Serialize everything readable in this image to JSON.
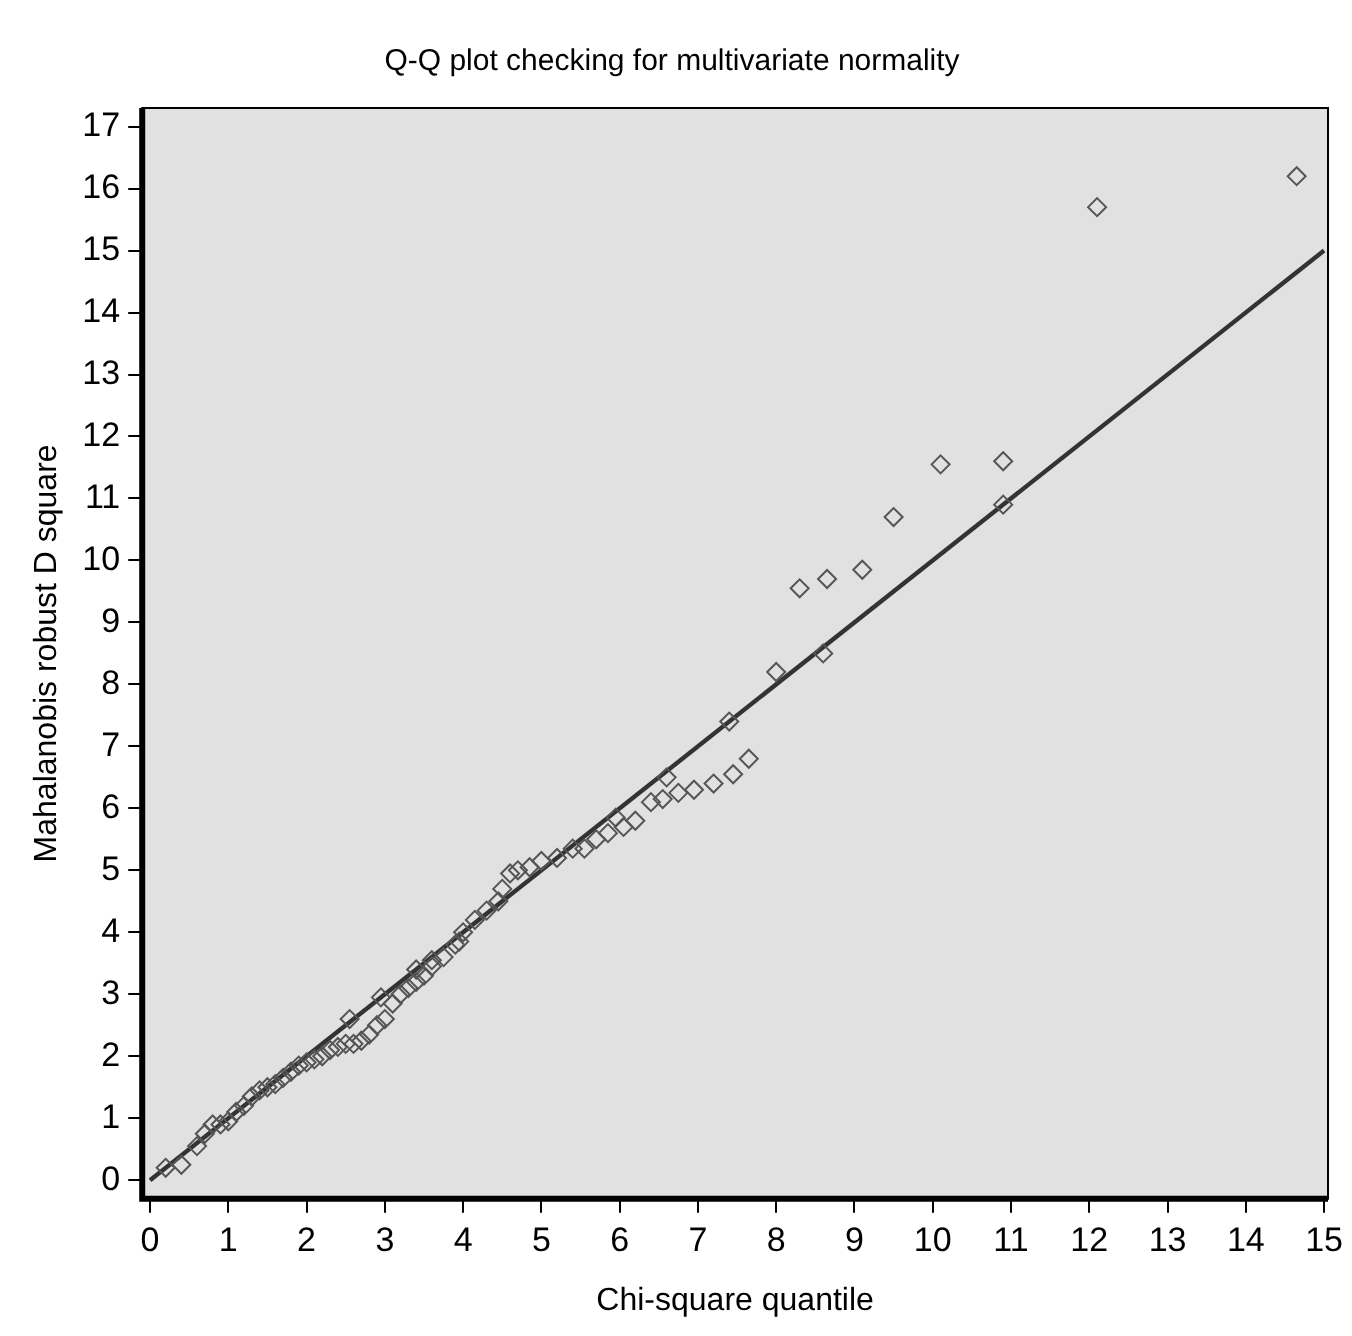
{
  "chart_data": {
    "type": "scatter",
    "title": "Q-Q plot checking for multivariate normality",
    "xlabel": "Chi-square quantile",
    "ylabel": "Mahalanobis robust D square",
    "xlim": [
      -0.1,
      15.05
    ],
    "ylim": [
      -0.3,
      17.3
    ],
    "xticks": [
      0,
      1,
      2,
      3,
      4,
      5,
      6,
      7,
      8,
      9,
      10,
      11,
      12,
      13,
      14,
      15
    ],
    "yticks": [
      0,
      1,
      2,
      3,
      4,
      5,
      6,
      7,
      8,
      9,
      10,
      11,
      12,
      13,
      14,
      15,
      16,
      17
    ],
    "grid": false,
    "legend": false,
    "series": [
      {
        "color": "#555555",
        "marker": "diamond",
        "x": [
          0.2,
          0.4,
          0.6,
          0.7,
          0.8,
          0.9,
          1.0,
          1.1,
          1.2,
          1.3,
          1.4,
          1.5,
          1.6,
          1.7,
          1.8,
          1.9,
          2.0,
          2.1,
          2.2,
          2.3,
          2.4,
          2.5,
          2.55,
          2.6,
          2.7,
          2.8,
          2.9,
          2.95,
          3.0,
          3.1,
          3.2,
          3.3,
          3.4,
          3.4,
          3.5,
          3.6,
          3.6,
          3.75,
          3.9,
          3.95,
          4.0,
          4.15,
          4.3,
          4.45,
          4.5,
          4.6,
          4.7,
          4.85,
          5.0,
          5.2,
          5.4,
          5.55,
          5.7,
          5.85,
          5.95,
          6.05,
          6.2,
          6.4,
          6.55,
          6.6,
          6.75,
          6.95,
          7.2,
          7.4,
          7.45,
          7.65,
          8.0,
          8.3,
          8.6,
          8.65,
          9.1,
          9.5,
          10.1,
          10.9,
          10.9,
          12.1,
          14.65
        ],
        "values": [
          0.2,
          0.25,
          0.55,
          0.75,
          0.9,
          0.9,
          0.95,
          1.1,
          1.2,
          1.35,
          1.45,
          1.5,
          1.55,
          1.65,
          1.75,
          1.85,
          1.9,
          1.95,
          2.0,
          2.1,
          2.15,
          2.2,
          2.6,
          2.2,
          2.25,
          2.35,
          2.5,
          2.95,
          2.6,
          2.85,
          3.0,
          3.1,
          3.2,
          3.4,
          3.3,
          3.45,
          3.55,
          3.6,
          3.8,
          3.85,
          4.0,
          4.2,
          4.35,
          4.5,
          4.7,
          4.95,
          5.0,
          5.05,
          5.15,
          5.2,
          5.35,
          5.35,
          5.5,
          5.6,
          5.85,
          5.7,
          5.8,
          6.1,
          6.15,
          6.5,
          6.25,
          6.3,
          6.4,
          7.4,
          6.55,
          6.8,
          8.2,
          9.55,
          8.5,
          9.7,
          9.85,
          10.7,
          11.55,
          10.9,
          11.6,
          15.7,
          16.2
        ]
      },
      {
        "type": "line",
        "color": "#333333",
        "marker": "none",
        "line_style": "solid",
        "x": [
          0,
          15
        ],
        "values": [
          0,
          15
        ]
      }
    ]
  }
}
